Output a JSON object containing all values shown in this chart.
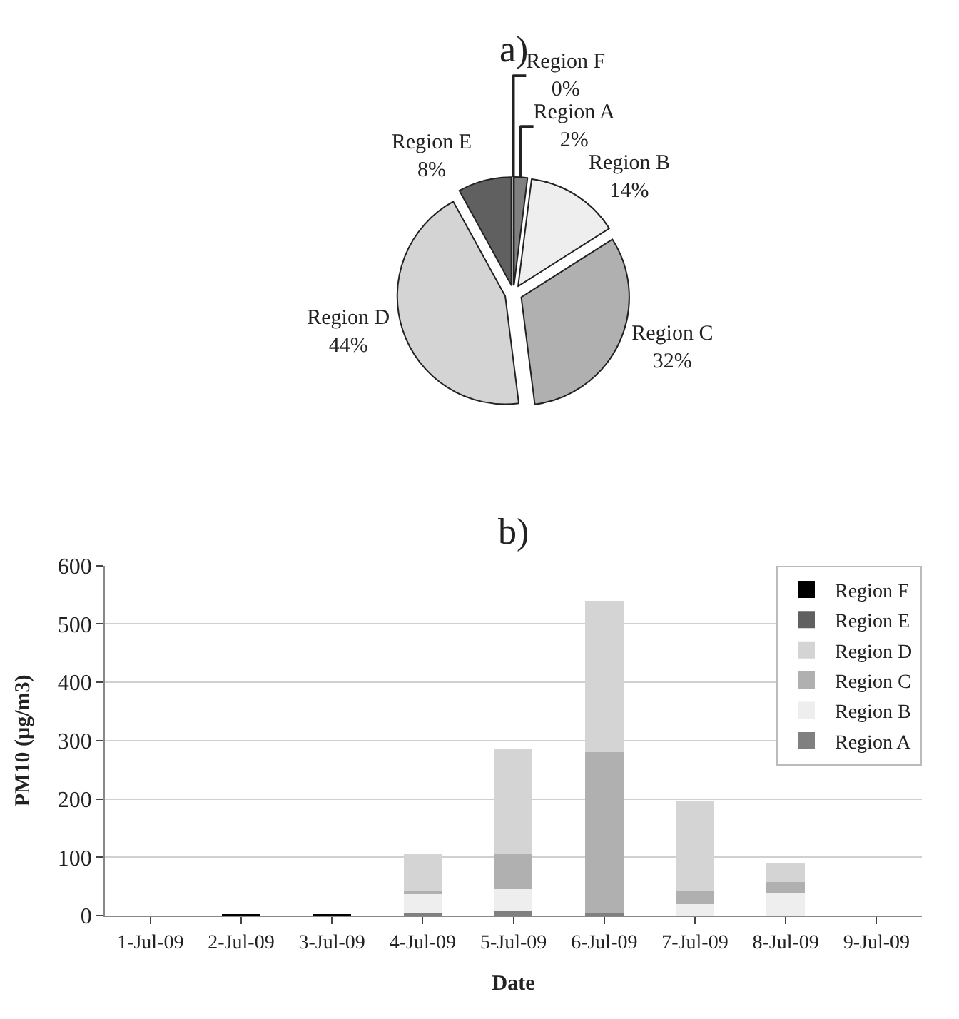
{
  "chart_data": [
    {
      "type": "pie",
      "title": "a)",
      "categories": [
        "Region A",
        "Region B",
        "Region C",
        "Region D",
        "Region E",
        "Region F"
      ],
      "values": [
        2,
        14,
        32,
        44,
        8,
        0
      ],
      "value_labels": [
        "2%",
        "14%",
        "32%",
        "44%",
        "8%",
        "0%"
      ],
      "colors": [
        "#808080",
        "#eeeeee",
        "#b0b0b0",
        "#d4d4d4",
        "#606060",
        "#000000"
      ],
      "legend": false
    },
    {
      "type": "bar",
      "title": "b)",
      "stacked": true,
      "xlabel": "Date",
      "ylabel": "PM10 (µg/m3)",
      "categories": [
        "1-Jul-09",
        "2-Jul-09",
        "3-Jul-09",
        "4-Jul-09",
        "5-Jul-09",
        "6-Jul-09",
        "7-Jul-09",
        "8-Jul-09",
        "9-Jul-09"
      ],
      "ylim": [
        0,
        600
      ],
      "yticks": [
        0,
        100,
        200,
        300,
        400,
        500,
        600
      ],
      "grid": "y",
      "legend": "top right",
      "series": [
        {
          "name": "Region A",
          "color": "#808080",
          "values": [
            null,
            null,
            null,
            5,
            8,
            5,
            null,
            null,
            null
          ]
        },
        {
          "name": "Region B",
          "color": "#eeeeee",
          "values": [
            null,
            null,
            null,
            32,
            37,
            null,
            20,
            38,
            null
          ]
        },
        {
          "name": "Region C",
          "color": "#b0b0b0",
          "values": [
            null,
            null,
            null,
            5,
            60,
            275,
            22,
            20,
            null
          ]
        },
        {
          "name": "Region D",
          "color": "#d4d4d4",
          "values": [
            null,
            null,
            null,
            63,
            180,
            260,
            155,
            32,
            null
          ]
        },
        {
          "name": "Region E",
          "color": "#606060",
          "values": [
            null,
            null,
            null,
            null,
            null,
            null,
            null,
            null,
            null
          ]
        },
        {
          "name": "Region F",
          "color": "#000000",
          "values": [
            null,
            2,
            3,
            null,
            null,
            null,
            null,
            null,
            null
          ]
        }
      ]
    }
  ]
}
